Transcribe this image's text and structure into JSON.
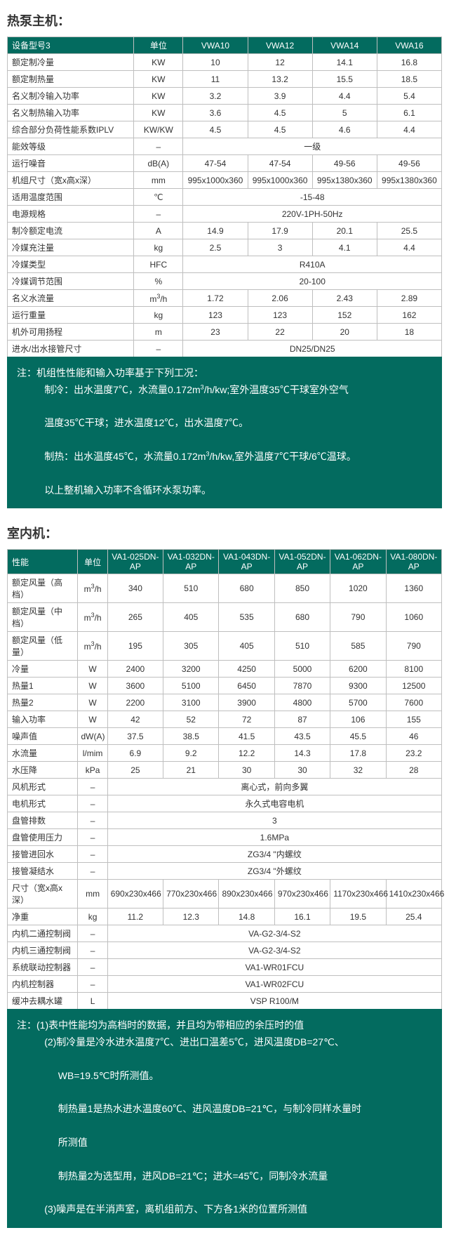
{
  "section1": {
    "title": "热泵主机：",
    "headers": [
      "设备型号3",
      "单位",
      "VWA10",
      "VWA12",
      "VWA14",
      "VWA16"
    ],
    "col_widths": [
      "180",
      "70",
      "92",
      "92",
      "92",
      "92"
    ],
    "rows": [
      {
        "label": "额定制冷量",
        "unit": "KW",
        "v": [
          "10",
          "12",
          "14.1",
          "16.8"
        ]
      },
      {
        "label": "额定制热量",
        "unit": "KW",
        "v": [
          "11",
          "13.2",
          "15.5",
          "18.5"
        ]
      },
      {
        "label": "名义制冷输入功率",
        "unit": "KW",
        "v": [
          "3.2",
          "3.9",
          "4.4",
          "5.4"
        ]
      },
      {
        "label": "名义制热输入功率",
        "unit": "KW",
        "v": [
          "3.6",
          "4.5",
          "5",
          "6.1"
        ]
      },
      {
        "label": "综合部分负荷性能系数IPLV",
        "unit": "KW/KW",
        "v": [
          "4.5",
          "4.5",
          "4.6",
          "4.4"
        ]
      },
      {
        "label": "能效等级",
        "unit": "–",
        "span": "一级"
      },
      {
        "label": "运行噪音",
        "unit": "dB(A)",
        "v": [
          "47-54",
          "47-54",
          "49-56",
          "49-56"
        ]
      },
      {
        "label": "机组尺寸（宽x高x深）",
        "unit": "mm",
        "v": [
          "995x1000x360",
          "995x1000x360",
          "995x1380x360",
          "995x1380x360"
        ]
      },
      {
        "label": "适用温度范围",
        "unit": "℃",
        "span": "-15-48"
      },
      {
        "label": "电源规格",
        "unit": "–",
        "span": "220V-1PH-50Hz"
      },
      {
        "label": "制冷额定电流",
        "unit": "A",
        "v": [
          "14.9",
          "17.9",
          "20.1",
          "25.5"
        ]
      },
      {
        "label": "冷媒充注量",
        "unit": "kg",
        "v": [
          "2.5",
          "3",
          "4.1",
          "4.4"
        ]
      },
      {
        "label": "冷媒类型",
        "unit": "HFC",
        "span": "R410A"
      },
      {
        "label": "冷媒调节范围",
        "unit": "%",
        "span": "20-100"
      },
      {
        "label": "名义水流量",
        "unit": "m³/h",
        "v": [
          "1.72",
          "2.06",
          "2.43",
          "2.89"
        ]
      },
      {
        "label": "运行重量",
        "unit": "kg",
        "v": [
          "123",
          "123",
          "152",
          "162"
        ]
      },
      {
        "label": "机外可用扬程",
        "unit": "m",
        "v": [
          "23",
          "22",
          "20",
          "18"
        ]
      },
      {
        "label": "进水/出水接管尺寸",
        "unit": "–",
        "span": "DN25/DN25"
      }
    ],
    "note": [
      "注：机组性性能和输入功率基于下列工况：",
      "制冷：出水温度7℃，水流量0.172m³/h/kw;室外温度35℃干球室外空气",
      "温度35℃干球；进水温度12℃，出水温度7℃。",
      "制热：出水温度45℃，水流量0.172m³/h/kw,室外温度7℃干球/6℃温球。",
      "以上整机输入功率不含循环水泵功率。"
    ]
  },
  "section2": {
    "title": "室内机：",
    "headers": [
      "性能",
      "单位",
      "VA1-025DN-AP",
      "VA1-032DN-AP",
      "VA1-043DN-AP",
      "VA1-052DN-AP",
      "VA1-062DN-AP",
      "VA1-080DN-AP"
    ],
    "col_widths": [
      "100",
      "42",
      "79",
      "79",
      "79",
      "79",
      "79",
      "79"
    ],
    "rows": [
      {
        "label": "额定风量（高档）",
        "unit": "m³/h",
        "v": [
          "340",
          "510",
          "680",
          "850",
          "1020",
          "1360"
        ]
      },
      {
        "label": "额定风量（中档）",
        "unit": "m³/h",
        "v": [
          "265",
          "405",
          "535",
          "680",
          "790",
          "1060"
        ]
      },
      {
        "label": "额定风量（低量）",
        "unit": "m³/h",
        "v": [
          "195",
          "305",
          "405",
          "510",
          "585",
          "790"
        ]
      },
      {
        "label": "冷量",
        "unit": "W",
        "v": [
          "2400",
          "3200",
          "4250",
          "5000",
          "6200",
          "8100"
        ]
      },
      {
        "label": "热量1",
        "unit": "W",
        "v": [
          "3600",
          "5100",
          "6450",
          "7870",
          "9300",
          "12500"
        ]
      },
      {
        "label": "热量2",
        "unit": "W",
        "v": [
          "2200",
          "3100",
          "3900",
          "4800",
          "5700",
          "7600"
        ]
      },
      {
        "label": "输入功率",
        "unit": "W",
        "v": [
          "42",
          "52",
          "72",
          "87",
          "106",
          "155"
        ]
      },
      {
        "label": "噪声值",
        "unit": "dW(A)",
        "v": [
          "37.5",
          "38.5",
          "41.5",
          "43.5",
          "45.5",
          "46"
        ]
      },
      {
        "label": "水流量",
        "unit": "l/mim",
        "v": [
          "6.9",
          "9.2",
          "12.2",
          "14.3",
          "17.8",
          "23.2"
        ]
      },
      {
        "label": "水压降",
        "unit": "kPa",
        "v": [
          "25",
          "21",
          "30",
          "30",
          "32",
          "28"
        ]
      },
      {
        "label": "风机形式",
        "unit": "–",
        "span": "离心式，前向多翼"
      },
      {
        "label": "电机形式",
        "unit": "–",
        "span": "永久式电容电机"
      },
      {
        "label": "盘管排数",
        "unit": "–",
        "span": "3"
      },
      {
        "label": "盘管使用压力",
        "unit": "–",
        "span": "1.6MPa"
      },
      {
        "label": "接管进回水",
        "unit": "–",
        "span": "ZG3/4 \"内螺纹"
      },
      {
        "label": "接管凝结水",
        "unit": "–",
        "span": "ZG3/4 \"外螺纹"
      },
      {
        "label": "尺寸（宽x高x深）",
        "unit": "mm",
        "v": [
          "690x230x466",
          "770x230x466",
          "890x230x466",
          "970x230x466",
          "1170x230x466",
          "1410x230x466"
        ]
      },
      {
        "label": "净重",
        "unit": "kg",
        "v": [
          "11.2",
          "12.3",
          "14.8",
          "16.1",
          "19.5",
          "25.4"
        ]
      },
      {
        "label": "内机二通控制阀",
        "unit": "–",
        "span": "VA-G2-3/4-S2"
      },
      {
        "label": "内机三通控制阀",
        "unit": "–",
        "span": "VA-G2-3/4-S2"
      },
      {
        "label": "系统联动控制器",
        "unit": "–",
        "span": "VA1-WR01FCU"
      },
      {
        "label": "内机控制器",
        "unit": "–",
        "span": "VA1-WR02FCU"
      },
      {
        "label": "缓冲去耦水罐",
        "unit": "L",
        "span": "VSP R100/M"
      }
    ],
    "note": [
      "注：(1)表中性能均为高档时的数据，并且均为带相应的余压时的值",
      "(2)制冷量是冷水进水温度7℃、进出口温差5℃，进风温度DB=27℃、",
      "WB=19.5℃时所测值。",
      "制热量1是热水进水温度60℃、进风温度DB=21℃，与制冷同样水量时",
      "所测值",
      "制热量2为选型用，进风DB=21℃；进水=45℃，同制冷水流量",
      "(3)噪声是在半消声室，离机组前方、下方各1米的位置所测值"
    ]
  },
  "colors": {
    "header_bg": "#036b5f",
    "header_fg": "#ffffff",
    "border": "#bfbfbf",
    "text": "#333333"
  }
}
